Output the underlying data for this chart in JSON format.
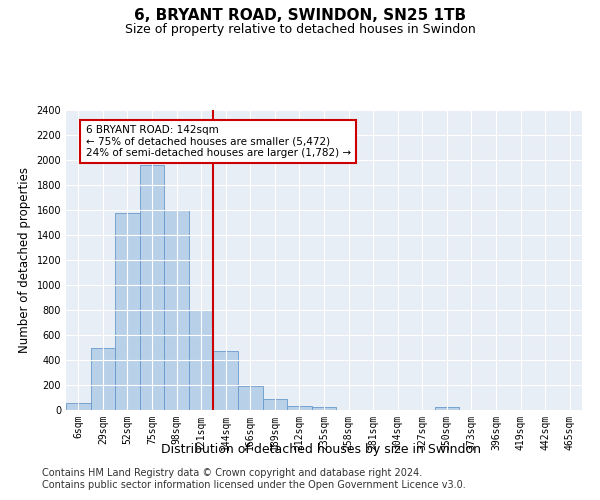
{
  "title": "6, BRYANT ROAD, SWINDON, SN25 1TB",
  "subtitle": "Size of property relative to detached houses in Swindon",
  "xlabel": "Distribution of detached houses by size in Swindon",
  "ylabel": "Number of detached properties",
  "bar_labels": [
    "6sqm",
    "29sqm",
    "52sqm",
    "75sqm",
    "98sqm",
    "121sqm",
    "144sqm",
    "166sqm",
    "189sqm",
    "212sqm",
    "235sqm",
    "258sqm",
    "281sqm",
    "304sqm",
    "327sqm",
    "350sqm",
    "373sqm",
    "396sqm",
    "419sqm",
    "442sqm",
    "465sqm"
  ],
  "bar_heights": [
    55,
    500,
    1580,
    1960,
    1600,
    800,
    475,
    195,
    90,
    35,
    25,
    0,
    0,
    0,
    0,
    25,
    0,
    0,
    0,
    0,
    0
  ],
  "bar_color": "#b8d0e8",
  "bar_edge_color": "#6699cc",
  "background_color": "#ffffff",
  "plot_bg_color": "#e8eef5",
  "vline_x": 5.5,
  "vline_color": "#cc0000",
  "annotation_text": "6 BRYANT ROAD: 142sqm\n← 75% of detached houses are smaller (5,472)\n24% of semi-detached houses are larger (1,782) →",
  "annotation_box_color": "white",
  "annotation_box_edge": "#cc0000",
  "ylim": [
    0,
    2400
  ],
  "yticks": [
    0,
    200,
    400,
    600,
    800,
    1000,
    1200,
    1400,
    1600,
    1800,
    2000,
    2200,
    2400
  ],
  "footer1": "Contains HM Land Registry data © Crown copyright and database right 2024.",
  "footer2": "Contains public sector information licensed under the Open Government Licence v3.0.",
  "title_fontsize": 11,
  "subtitle_fontsize": 9,
  "xlabel_fontsize": 9,
  "ylabel_fontsize": 8.5,
  "tick_fontsize": 7,
  "footer_fontsize": 7
}
